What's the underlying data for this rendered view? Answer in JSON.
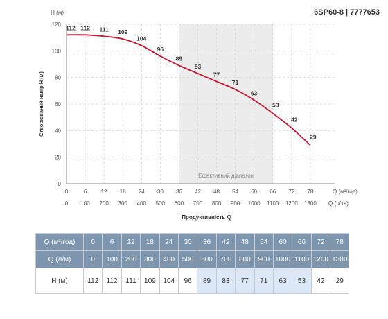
{
  "title": "6SP60-8 | 7777653",
  "chart_data": {
    "type": "line",
    "title": "6SP60-8 | 7777653",
    "ylabel": "Створюваний напір H (м)",
    "ylabel_top": "H (м)",
    "xlabel": "Продуктивність Q",
    "x_unit_primary": "Q (м³/год)",
    "x_unit_secondary": "Q (л/хв)",
    "x_primary_ticks": [
      "0",
      "6",
      "12",
      "18",
      "24",
      "30",
      "36",
      "42",
      "48",
      "54",
      "60",
      "66",
      "72",
      "78"
    ],
    "x_secondary_ticks": [
      "0",
      "100",
      "200",
      "300",
      "400",
      "500",
      "600",
      "700",
      "800",
      "900",
      "1000",
      "1100",
      "1200",
      "1300"
    ],
    "y_ticks": [
      "0",
      "20",
      "40",
      "60",
      "80",
      "100",
      "120"
    ],
    "xlim": [
      0,
      86
    ],
    "ylim": [
      0,
      120
    ],
    "grid": true,
    "efficient_range": {
      "label": "Ефективний діапазон",
      "x_from": 36,
      "x_to": 66
    },
    "series": [
      {
        "color": "#c8102e",
        "x": [
          0,
          6,
          12,
          18,
          24,
          30,
          36,
          42,
          48,
          54,
          60,
          66,
          72,
          78
        ],
        "y": [
          112,
          112,
          111,
          109,
          104,
          96,
          89,
          83,
          77,
          71,
          63,
          53,
          42,
          29
        ],
        "labels": [
          "112",
          "112",
          "111",
          "109",
          "104",
          "96",
          "89",
          "83",
          "77",
          "71",
          "63",
          "53",
          "42",
          "29"
        ]
      }
    ]
  },
  "table": {
    "rows": [
      {
        "header": "Q (м³/год)",
        "cells": [
          "0",
          "6",
          "12",
          "18",
          "24",
          "30",
          "36",
          "42",
          "48",
          "54",
          "60",
          "66",
          "72",
          "78"
        ]
      },
      {
        "header": "Q (л/м)",
        "cells": [
          "0",
          "100",
          "200",
          "300",
          "400",
          "500",
          "600",
          "700",
          "800",
          "900",
          "1000",
          "1100",
          "1200",
          "1300"
        ]
      },
      {
        "header": "H (м)",
        "cells": [
          "112",
          "112",
          "111",
          "109",
          "104",
          "96",
          "89",
          "83",
          "77",
          "71",
          "63",
          "53",
          "42",
          "29"
        ]
      }
    ],
    "highlight_from": 6,
    "highlight_to": 11,
    "highlight_color": "#dde8f6"
  }
}
